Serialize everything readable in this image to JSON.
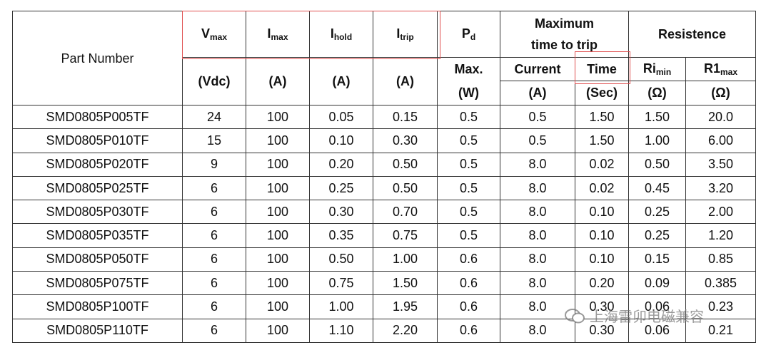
{
  "header": {
    "part_number": "Part Number",
    "columns": [
      {
        "symbol": "V",
        "sub": "max",
        "unit": "(Vdc)"
      },
      {
        "symbol": "I",
        "sub": "max",
        "unit": "(A)"
      },
      {
        "symbol": "I",
        "sub": "hold",
        "unit": "(A)"
      },
      {
        "symbol": "I",
        "sub": "trip",
        "unit": "(A)"
      }
    ],
    "power": {
      "symbol": "P",
      "sub": "d",
      "line2": "Max.",
      "unit": "(W)"
    },
    "trip_time": {
      "title": "Maximum time to trip",
      "current": "Current",
      "current_unit": "(A)",
      "time": "Time",
      "time_unit": "(Sec)"
    },
    "resistance": {
      "title": "Resistence",
      "ri": {
        "symbol": "Ri",
        "sub": "min",
        "unit": "(Ω)"
      },
      "r1": {
        "symbol": "R1",
        "sub": "max",
        "unit": "(Ω)"
      }
    }
  },
  "table": {
    "rows": [
      [
        "SMD0805P005TF",
        "24",
        "100",
        "0.05",
        "0.15",
        "0.5",
        "0.5",
        "1.50",
        "1.50",
        "20.0"
      ],
      [
        "SMD0805P010TF",
        "15",
        "100",
        "0.10",
        "0.30",
        "0.5",
        "0.5",
        "1.50",
        "1.00",
        "6.00"
      ],
      [
        "SMD0805P020TF",
        "9",
        "100",
        "0.20",
        "0.50",
        "0.5",
        "8.0",
        "0.02",
        "0.50",
        "3.50"
      ],
      [
        "SMD0805P025TF",
        "6",
        "100",
        "0.25",
        "0.50",
        "0.5",
        "8.0",
        "0.02",
        "0.45",
        "3.20"
      ],
      [
        "SMD0805P030TF",
        "6",
        "100",
        "0.30",
        "0.70",
        "0.5",
        "8.0",
        "0.10",
        "0.25",
        "2.00"
      ],
      [
        "SMD0805P035TF",
        "6",
        "100",
        "0.35",
        "0.75",
        "0.5",
        "8.0",
        "0.10",
        "0.25",
        "1.20"
      ],
      [
        "SMD0805P050TF",
        "6",
        "100",
        "0.50",
        "1.00",
        "0.6",
        "8.0",
        "0.10",
        "0.15",
        "0.85"
      ],
      [
        "SMD0805P075TF",
        "6",
        "100",
        "0.75",
        "1.50",
        "0.6",
        "8.0",
        "0.20",
        "0.09",
        "0.385"
      ],
      [
        "SMD0805P100TF",
        "6",
        "100",
        "1.00",
        "1.95",
        "0.6",
        "8.0",
        "0.30",
        "0.06",
        "0.23"
      ],
      [
        "SMD0805P110TF",
        "6",
        "100",
        "1.10",
        "2.20",
        "0.6",
        "8.0",
        "0.30",
        "0.06",
        "0.21"
      ]
    ]
  },
  "watermark": "上海雷卯电磁兼容"
}
